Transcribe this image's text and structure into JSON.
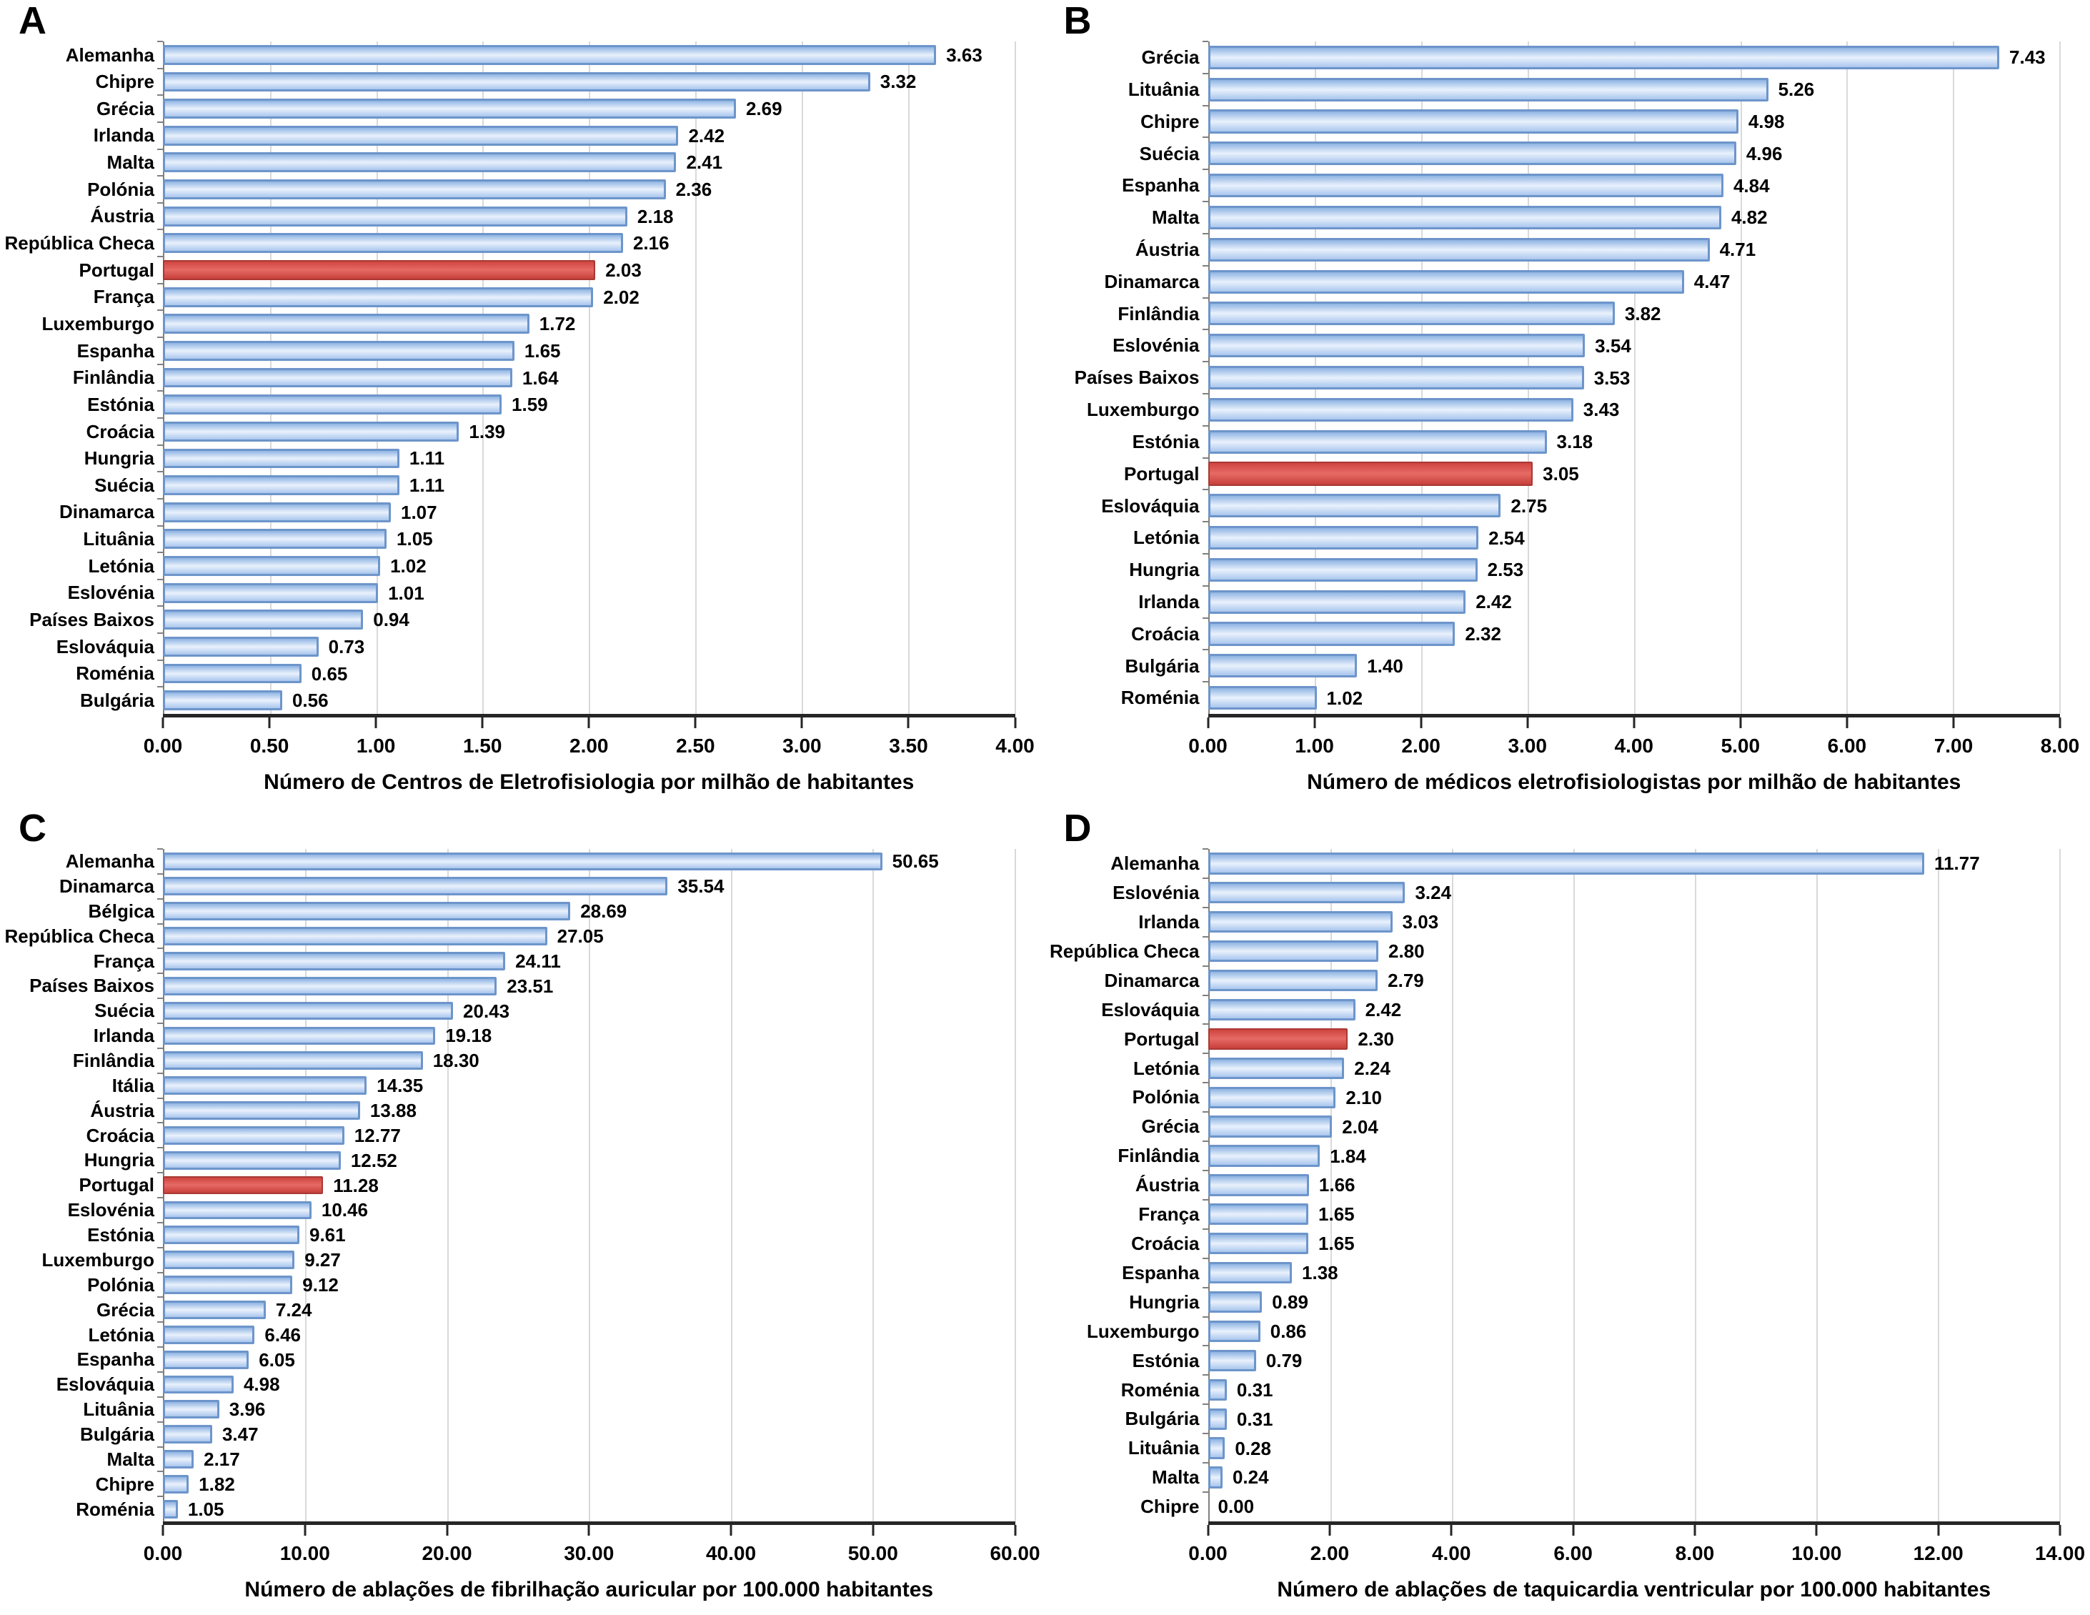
{
  "colors": {
    "bar_border": "#6d95ca",
    "bar_fill_top": "#8fb4e3",
    "bar_fill_mid": "#e9f1fc",
    "bar_fill_bottom": "#a9c6ee",
    "highlight_border": "#a93833",
    "highlight_fill_top": "#cf4540",
    "highlight_fill_mid": "#e66a65",
    "highlight_fill_bottom": "#c8403b",
    "gridline": "#d9d9d9",
    "axis_line": "#262626",
    "y_axis_line": "#808080",
    "text": "#000000"
  },
  "chart_data": [
    {
      "type": "bar",
      "orientation": "horizontal",
      "panel_label": "A",
      "axis_title": "Número de Centros de Eletrofisiologia por milhão de habitantes",
      "xlim": [
        0,
        4
      ],
      "x_max": 4,
      "x_ticks": [
        "0.00",
        "0.50",
        "1.00",
        "1.50",
        "2.00",
        "2.50",
        "3.00",
        "3.50",
        "4.00"
      ],
      "grid": true,
      "bars": [
        {
          "label": "Alemanha",
          "value": 3.63,
          "highlight": false
        },
        {
          "label": "Chipre",
          "value": 3.32,
          "highlight": false
        },
        {
          "label": "Grécia",
          "value": 2.69,
          "highlight": false
        },
        {
          "label": "Irlanda",
          "value": 2.42,
          "highlight": false
        },
        {
          "label": "Malta",
          "value": 2.41,
          "highlight": false
        },
        {
          "label": "Polónia",
          "value": 2.36,
          "highlight": false
        },
        {
          "label": "Áustria",
          "value": 2.18,
          "highlight": false
        },
        {
          "label": "República Checa",
          "value": 2.16,
          "highlight": false
        },
        {
          "label": "Portugal",
          "value": 2.03,
          "highlight": true
        },
        {
          "label": "França",
          "value": 2.02,
          "highlight": false
        },
        {
          "label": "Luxemburgo",
          "value": 1.72,
          "highlight": false
        },
        {
          "label": "Espanha",
          "value": 1.65,
          "highlight": false
        },
        {
          "label": "Finlândia",
          "value": 1.64,
          "highlight": false
        },
        {
          "label": "Estónia",
          "value": 1.59,
          "highlight": false
        },
        {
          "label": "Croácia",
          "value": 1.39,
          "highlight": false
        },
        {
          "label": "Hungria",
          "value": 1.11,
          "highlight": false
        },
        {
          "label": "Suécia",
          "value": 1.11,
          "highlight": false
        },
        {
          "label": "Dinamarca",
          "value": 1.07,
          "highlight": false
        },
        {
          "label": "Lituânia",
          "value": 1.05,
          "highlight": false
        },
        {
          "label": "Letónia",
          "value": 1.02,
          "highlight": false
        },
        {
          "label": "Eslovénia",
          "value": 1.01,
          "highlight": false
        },
        {
          "label": "Países Baixos",
          "value": 0.94,
          "highlight": false
        },
        {
          "label": "Eslováquia",
          "value": 0.73,
          "highlight": false
        },
        {
          "label": "Roménia",
          "value": 0.65,
          "highlight": false
        },
        {
          "label": "Bulgária",
          "value": 0.56,
          "highlight": false
        }
      ]
    },
    {
      "type": "bar",
      "orientation": "horizontal",
      "panel_label": "B",
      "axis_title": "Número de médicos eletrofisiologistas por milhão de habitantes",
      "xlim": [
        0,
        8
      ],
      "x_max": 8,
      "x_ticks": [
        "0.00",
        "1.00",
        "2.00",
        "3.00",
        "4.00",
        "5.00",
        "6.00",
        "7.00",
        "8.00"
      ],
      "grid": true,
      "bars": [
        {
          "label": "Grécia",
          "value": 7.43,
          "highlight": false
        },
        {
          "label": "Lituânia",
          "value": 5.26,
          "highlight": false
        },
        {
          "label": "Chipre",
          "value": 4.98,
          "highlight": false
        },
        {
          "label": "Suécia",
          "value": 4.96,
          "highlight": false
        },
        {
          "label": "Espanha",
          "value": 4.84,
          "highlight": false
        },
        {
          "label": "Malta",
          "value": 4.82,
          "highlight": false
        },
        {
          "label": "Áustria",
          "value": 4.71,
          "highlight": false
        },
        {
          "label": "Dinamarca",
          "value": 4.47,
          "highlight": false
        },
        {
          "label": "Finlândia",
          "value": 3.82,
          "highlight": false
        },
        {
          "label": "Eslovénia",
          "value": 3.54,
          "highlight": false
        },
        {
          "label": "Países Baixos",
          "value": 3.53,
          "highlight": false
        },
        {
          "label": "Luxemburgo",
          "value": 3.43,
          "highlight": false
        },
        {
          "label": "Estónia",
          "value": 3.18,
          "highlight": false
        },
        {
          "label": "Portugal",
          "value": 3.05,
          "highlight": true
        },
        {
          "label": "Eslováquia",
          "value": 2.75,
          "highlight": false
        },
        {
          "label": "Letónia",
          "value": 2.54,
          "highlight": false
        },
        {
          "label": "Hungria",
          "value": 2.53,
          "highlight": false
        },
        {
          "label": "Irlanda",
          "value": 2.42,
          "highlight": false
        },
        {
          "label": "Croácia",
          "value": 2.32,
          "highlight": false
        },
        {
          "label": "Bulgária",
          "value": 1.4,
          "highlight": false
        },
        {
          "label": "Roménia",
          "value": 1.02,
          "highlight": false
        }
      ]
    },
    {
      "type": "bar",
      "orientation": "horizontal",
      "panel_label": "C",
      "axis_title": "Número de ablações de fibrilhação auricular por 100.000 habitantes",
      "xlim": [
        0,
        60
      ],
      "x_max": 60,
      "x_ticks": [
        "0.00",
        "10.00",
        "20.00",
        "30.00",
        "40.00",
        "50.00",
        "60.00"
      ],
      "grid": true,
      "bars": [
        {
          "label": "Alemanha",
          "value": 50.65,
          "highlight": false
        },
        {
          "label": "Dinamarca",
          "value": 35.54,
          "highlight": false
        },
        {
          "label": "Bélgica",
          "value": 28.69,
          "highlight": false
        },
        {
          "label": "República Checa",
          "value": 27.05,
          "highlight": false
        },
        {
          "label": "França",
          "value": 24.11,
          "highlight": false
        },
        {
          "label": "Países Baixos",
          "value": 23.51,
          "highlight": false
        },
        {
          "label": "Suécia",
          "value": 20.43,
          "highlight": false
        },
        {
          "label": "Irlanda",
          "value": 19.18,
          "highlight": false
        },
        {
          "label": "Finlândia",
          "value": 18.3,
          "highlight": false
        },
        {
          "label": "Itália",
          "value": 14.35,
          "highlight": false
        },
        {
          "label": "Áustria",
          "value": 13.88,
          "highlight": false
        },
        {
          "label": "Croácia",
          "value": 12.77,
          "highlight": false
        },
        {
          "label": "Hungria",
          "value": 12.52,
          "highlight": false
        },
        {
          "label": "Portugal",
          "value": 11.28,
          "highlight": true
        },
        {
          "label": "Eslovénia",
          "value": 10.46,
          "highlight": false
        },
        {
          "label": "Estónia",
          "value": 9.61,
          "highlight": false
        },
        {
          "label": "Luxemburgo",
          "value": 9.27,
          "highlight": false
        },
        {
          "label": "Polónia",
          "value": 9.12,
          "highlight": false
        },
        {
          "label": "Grécia",
          "value": 7.24,
          "highlight": false
        },
        {
          "label": "Letónia",
          "value": 6.46,
          "highlight": false
        },
        {
          "label": "Espanha",
          "value": 6.05,
          "highlight": false
        },
        {
          "label": "Eslováquia",
          "value": 4.98,
          "highlight": false
        },
        {
          "label": "Lituânia",
          "value": 3.96,
          "highlight": false
        },
        {
          "label": "Bulgária",
          "value": 3.47,
          "highlight": false
        },
        {
          "label": "Malta",
          "value": 2.17,
          "highlight": false
        },
        {
          "label": "Chipre",
          "value": 1.82,
          "highlight": false
        },
        {
          "label": "Roménia",
          "value": 1.05,
          "highlight": false
        }
      ]
    },
    {
      "type": "bar",
      "orientation": "horizontal",
      "panel_label": "D",
      "axis_title": "Número de ablações de taquicardia ventricular por 100.000 habitantes",
      "xlim": [
        0,
        14
      ],
      "x_max": 14,
      "x_ticks": [
        "0.00",
        "2.00",
        "4.00",
        "6.00",
        "8.00",
        "10.00",
        "12.00",
        "14.00"
      ],
      "grid": true,
      "bars": [
        {
          "label": "Alemanha",
          "value": 11.77,
          "highlight": false
        },
        {
          "label": "Eslovénia",
          "value": 3.24,
          "highlight": false
        },
        {
          "label": "Irlanda",
          "value": 3.03,
          "highlight": false
        },
        {
          "label": "República Checa",
          "value": 2.8,
          "highlight": false
        },
        {
          "label": "Dinamarca",
          "value": 2.79,
          "highlight": false
        },
        {
          "label": "Eslováquia",
          "value": 2.42,
          "highlight": false
        },
        {
          "label": "Portugal",
          "value": 2.3,
          "highlight": true
        },
        {
          "label": "Letónia",
          "value": 2.24,
          "highlight": false
        },
        {
          "label": "Polónia",
          "value": 2.1,
          "highlight": false
        },
        {
          "label": "Grécia",
          "value": 2.04,
          "highlight": false
        },
        {
          "label": "Finlândia",
          "value": 1.84,
          "highlight": false
        },
        {
          "label": "Áustria",
          "value": 1.66,
          "highlight": false
        },
        {
          "label": "França",
          "value": 1.65,
          "highlight": false
        },
        {
          "label": "Croácia",
          "value": 1.65,
          "highlight": false
        },
        {
          "label": "Espanha",
          "value": 1.38,
          "highlight": false
        },
        {
          "label": "Hungria",
          "value": 0.89,
          "highlight": false
        },
        {
          "label": "Luxemburgo",
          "value": 0.86,
          "highlight": false
        },
        {
          "label": "Estónia",
          "value": 0.79,
          "highlight": false
        },
        {
          "label": "Roménia",
          "value": 0.31,
          "highlight": false
        },
        {
          "label": "Bulgária",
          "value": 0.31,
          "highlight": false
        },
        {
          "label": "Lituânia",
          "value": 0.28,
          "highlight": false
        },
        {
          "label": "Malta",
          "value": 0.24,
          "highlight": false
        },
        {
          "label": "Chipre",
          "value": 0.0,
          "highlight": false
        }
      ]
    }
  ]
}
